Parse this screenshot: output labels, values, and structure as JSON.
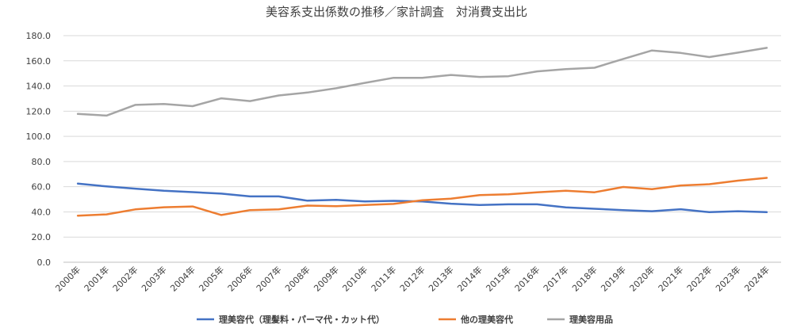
{
  "chart_data": {
    "type": "line",
    "title": "美容系支出係数の推移／家計調査　対消費支出比",
    "categories": [
      "2000年",
      "2001年",
      "2002年",
      "2003年",
      "2004年",
      "2005年",
      "2006年",
      "2007年",
      "2008年",
      "2009年",
      "2010年",
      "2011年",
      "2012年",
      "2013年",
      "2014年",
      "2015年",
      "2016年",
      "2017年",
      "2018年",
      "2019年",
      "2020年",
      "2021年",
      "2022年",
      "2023年",
      "2024年"
    ],
    "ylim": [
      0,
      180
    ],
    "yticks": [
      "0.0",
      "20.0",
      "40.0",
      "60.0",
      "80.0",
      "100.0",
      "120.0",
      "140.0",
      "160.0",
      "180.0"
    ],
    "grid": true,
    "legend_position": "bottom",
    "series": [
      {
        "name": "理美容代（理髪料・パーマ代・カット代）",
        "color": "#4472C4",
        "values": [
          62.5,
          60.2,
          58.5,
          56.8,
          55.7,
          54.5,
          52.3,
          52.3,
          48.9,
          49.5,
          48.3,
          48.8,
          48.3,
          46.5,
          45.5,
          46.0,
          46.0,
          43.6,
          42.5,
          41.4,
          40.5,
          42.1,
          39.8,
          40.5,
          39.8
        ]
      },
      {
        "name": "他の理美容代",
        "color": "#ED7D31",
        "values": [
          37.0,
          38.0,
          42.0,
          43.7,
          44.3,
          37.5,
          41.4,
          42.0,
          45.0,
          44.5,
          45.5,
          46.3,
          49.3,
          50.5,
          53.4,
          54.0,
          55.6,
          56.8,
          55.6,
          59.8,
          58.0,
          61.0,
          62.0,
          64.8,
          67.0
        ]
      },
      {
        "name": "理美容用品",
        "color": "#A5A5A5",
        "values": [
          117.8,
          116.5,
          125.0,
          125.7,
          124.0,
          130.2,
          128.0,
          132.5,
          134.8,
          138.2,
          142.5,
          146.5,
          146.5,
          148.8,
          147.2,
          147.8,
          151.6,
          153.4,
          154.5,
          161.5,
          168.2,
          166.3,
          163.0,
          166.5,
          170.3
        ]
      }
    ]
  }
}
